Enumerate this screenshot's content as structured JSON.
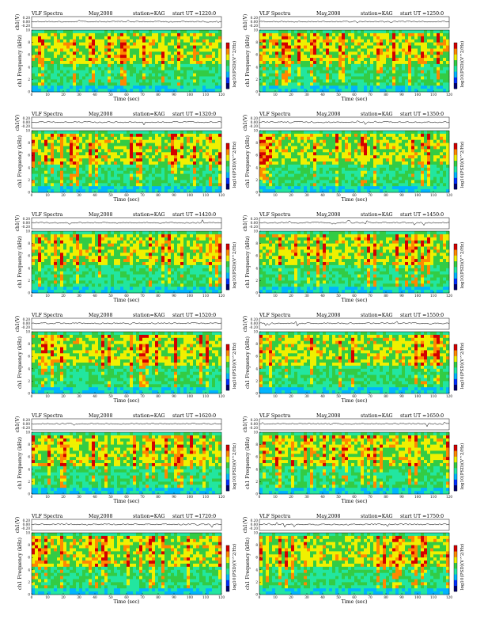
{
  "page": {
    "background": "#ffffff"
  },
  "chart_data": [
    {
      "type": "heatmap",
      "title": "VLF Spectra",
      "date": "May,2008",
      "station": "station=KAG",
      "start_ut": "start UT =1220:0",
      "top_panel": {
        "ylabel": "ch1(V)",
        "yticks": [
          "0.20",
          "0.00",
          "-0.20"
        ]
      },
      "ylabel": "ch1 Frequency (kHz)",
      "ylim": [
        0,
        10
      ],
      "yticks": [
        "0",
        "2",
        "4",
        "6",
        "8",
        "10"
      ],
      "xlabel": "Time (sec)",
      "xlim": [
        0,
        120
      ],
      "xticks": [
        "0",
        "10",
        "20",
        "30",
        "40",
        "50",
        "60",
        "70",
        "80",
        "90",
        "100",
        "110",
        "120"
      ],
      "colorbar_label": "log10(PSD)(V^2/Hz)",
      "colormap": [
        "#000070",
        "#0030ff",
        "#00b4ff",
        "#22e6a0",
        "#33cc44",
        "#f0f000",
        "#ff8800",
        "#d40000"
      ]
    },
    {
      "type": "heatmap",
      "title": "VLF Spectra",
      "date": "May,2008",
      "station": "station=KAG",
      "start_ut": "start UT =1250:0",
      "top_panel": {
        "ylabel": "ch1(V)",
        "yticks": [
          "0.20",
          "0.00",
          "-0.20"
        ]
      },
      "ylabel": "ch1 Frequency (kHz)",
      "ylim": [
        0,
        10
      ],
      "yticks": [
        "0",
        "2",
        "4",
        "6",
        "8",
        "10"
      ],
      "xlabel": "Time (sec)",
      "xlim": [
        0,
        120
      ],
      "xticks": [
        "0",
        "10",
        "20",
        "30",
        "40",
        "50",
        "60",
        "70",
        "80",
        "90",
        "100",
        "110",
        "120"
      ],
      "colorbar_label": "log10(PSD)(V^2/Hz)",
      "colormap": [
        "#000070",
        "#0030ff",
        "#00b4ff",
        "#22e6a0",
        "#33cc44",
        "#f0f000",
        "#ff8800",
        "#d40000"
      ]
    },
    {
      "type": "heatmap",
      "title": "VLF Spectra",
      "date": "May,2008",
      "station": "station=KAG",
      "start_ut": "start UT =1320:0",
      "top_panel": {
        "ylabel": "ch1(V)",
        "yticks": [
          "0.20",
          "0.00",
          "-0.20"
        ]
      },
      "ylabel": "ch1 Frequency (kHz)",
      "ylim": [
        0,
        10
      ],
      "yticks": [
        "0",
        "2",
        "4",
        "6",
        "8",
        "10"
      ],
      "xlabel": "Time (sec)",
      "xlim": [
        0,
        120
      ],
      "xticks": [
        "0",
        "10",
        "20",
        "30",
        "40",
        "50",
        "60",
        "70",
        "80",
        "90",
        "100",
        "110",
        "120"
      ],
      "colorbar_label": "log10(PSD)(V^2/Hz)",
      "colormap": [
        "#000070",
        "#0030ff",
        "#00b4ff",
        "#22e6a0",
        "#33cc44",
        "#f0f000",
        "#ff8800",
        "#d40000"
      ]
    },
    {
      "type": "heatmap",
      "title": "VLF Spectra",
      "date": "May,2008",
      "station": "station=KAG",
      "start_ut": "start UT =1350:0",
      "top_panel": {
        "ylabel": "ch1(V)",
        "yticks": [
          "0.20",
          "0.00",
          "-0.20"
        ]
      },
      "ylabel": "ch1 Frequency (kHz)",
      "ylim": [
        0,
        10
      ],
      "yticks": [
        "0",
        "2",
        "4",
        "6",
        "8",
        "10"
      ],
      "xlabel": "Time (sec)",
      "xlim": [
        0,
        120
      ],
      "xticks": [
        "0",
        "10",
        "20",
        "30",
        "40",
        "50",
        "60",
        "70",
        "80",
        "90",
        "100",
        "110",
        "120"
      ],
      "colorbar_label": "log10(PSD)(V^2/Hz)",
      "colormap": [
        "#000070",
        "#0030ff",
        "#00b4ff",
        "#22e6a0",
        "#33cc44",
        "#f0f000",
        "#ff8800",
        "#d40000"
      ]
    },
    {
      "type": "heatmap",
      "title": "VLF Spectra",
      "date": "May,2008",
      "station": "station=KAG",
      "start_ut": "start UT =1420:0",
      "top_panel": {
        "ylabel": "ch1(V)",
        "yticks": [
          "0.20",
          "0.00",
          "-0.20"
        ]
      },
      "ylabel": "ch1 Frequency (kHz)",
      "ylim": [
        0,
        10
      ],
      "yticks": [
        "0",
        "2",
        "4",
        "6",
        "8",
        "10"
      ],
      "xlabel": "Time (sec)",
      "xlim": [
        0,
        120
      ],
      "xticks": [
        "0",
        "10",
        "20",
        "30",
        "40",
        "50",
        "60",
        "70",
        "80",
        "90",
        "100",
        "110",
        "120"
      ],
      "colorbar_label": "log10(PSD)(V^2/Hz)",
      "colormap": [
        "#000070",
        "#0030ff",
        "#00b4ff",
        "#22e6a0",
        "#33cc44",
        "#f0f000",
        "#ff8800",
        "#d40000"
      ]
    },
    {
      "type": "heatmap",
      "title": "VLF Spectra",
      "date": "May,2008",
      "station": "station=KAG",
      "start_ut": "start UT =1450:0",
      "top_panel": {
        "ylabel": "ch1(V)",
        "yticks": [
          "0.20",
          "0.00",
          "-0.20"
        ]
      },
      "ylabel": "ch1 Frequency (kHz)",
      "ylim": [
        0,
        10
      ],
      "yticks": [
        "0",
        "2",
        "4",
        "6",
        "8",
        "10"
      ],
      "xlabel": "Time (sec)",
      "xlim": [
        0,
        120
      ],
      "xticks": [
        "0",
        "10",
        "20",
        "30",
        "40",
        "50",
        "60",
        "70",
        "80",
        "90",
        "100",
        "110",
        "120"
      ],
      "colorbar_label": "log10(PSD)(V^2/Hz)",
      "colormap": [
        "#000070",
        "#0030ff",
        "#00b4ff",
        "#22e6a0",
        "#33cc44",
        "#f0f000",
        "#ff8800",
        "#d40000"
      ]
    },
    {
      "type": "heatmap",
      "title": "VLF Spectra",
      "date": "May,2008",
      "station": "station=KAG",
      "start_ut": "start UT =1520:0",
      "top_panel": {
        "ylabel": "ch1(V)",
        "yticks": [
          "0.20",
          "0.00",
          "-0.20"
        ]
      },
      "ylabel": "ch1 Frequency (kHz)",
      "ylim": [
        0,
        10
      ],
      "yticks": [
        "0",
        "2",
        "4",
        "6",
        "8",
        "10"
      ],
      "xlabel": "Time (sec)",
      "xlim": [
        0,
        120
      ],
      "xticks": [
        "0",
        "10",
        "20",
        "30",
        "40",
        "50",
        "60",
        "70",
        "80",
        "90",
        "100",
        "110",
        "120"
      ],
      "colorbar_label": "log10(PSD)(V^2/Hz)",
      "colormap": [
        "#000070",
        "#0030ff",
        "#00b4ff",
        "#22e6a0",
        "#33cc44",
        "#f0f000",
        "#ff8800",
        "#d40000"
      ]
    },
    {
      "type": "heatmap",
      "title": "VLF Spectra",
      "date": "May,2008",
      "station": "station=KAG",
      "start_ut": "start UT =1550:0",
      "top_panel": {
        "ylabel": "ch1(V)",
        "yticks": [
          "0.20",
          "0.00",
          "-0.20"
        ]
      },
      "ylabel": "ch1 Frequency (kHz)",
      "ylim": [
        0,
        10
      ],
      "yticks": [
        "0",
        "2",
        "4",
        "6",
        "8",
        "10"
      ],
      "xlabel": "Time (sec)",
      "xlim": [
        0,
        120
      ],
      "xticks": [
        "0",
        "10",
        "20",
        "30",
        "40",
        "50",
        "60",
        "70",
        "80",
        "90",
        "100",
        "110",
        "120"
      ],
      "colorbar_label": "log10(PSD)(V^2/Hz)",
      "colormap": [
        "#000070",
        "#0030ff",
        "#00b4ff",
        "#22e6a0",
        "#33cc44",
        "#f0f000",
        "#ff8800",
        "#d40000"
      ]
    },
    {
      "type": "heatmap",
      "title": "VLF Spectra",
      "date": "May,2008",
      "station": "station=KAG",
      "start_ut": "start UT =1620:0",
      "top_panel": {
        "ylabel": "ch1(V)",
        "yticks": [
          "0.20",
          "0.00",
          "-0.20"
        ]
      },
      "ylabel": "ch1 Frequency (kHz)",
      "ylim": [
        0,
        10
      ],
      "yticks": [
        "0",
        "2",
        "4",
        "6",
        "8",
        "10"
      ],
      "xlabel": "Time (sec)",
      "xlim": [
        0,
        120
      ],
      "xticks": [
        "0",
        "10",
        "20",
        "30",
        "40",
        "50",
        "60",
        "70",
        "80",
        "90",
        "100",
        "110",
        "120"
      ],
      "colorbar_label": "log10(PSD)(V^2/Hz)",
      "colormap": [
        "#000070",
        "#0030ff",
        "#00b4ff",
        "#22e6a0",
        "#33cc44",
        "#f0f000",
        "#ff8800",
        "#d40000"
      ]
    },
    {
      "type": "heatmap",
      "title": "VLF Spectra",
      "date": "May,2008",
      "station": "station=KAG",
      "start_ut": "start UT =1650:0",
      "top_panel": {
        "ylabel": "ch1(V)",
        "yticks": [
          "0.20",
          "0.00",
          "-0.20"
        ]
      },
      "ylabel": "ch1 Frequency (kHz)",
      "ylim": [
        0,
        10
      ],
      "yticks": [
        "0",
        "2",
        "4",
        "6",
        "8",
        "10"
      ],
      "xlabel": "Time (sec)",
      "xlim": [
        0,
        120
      ],
      "xticks": [
        "0",
        "10",
        "20",
        "30",
        "40",
        "50",
        "60",
        "70",
        "80",
        "90",
        "100",
        "110",
        "120"
      ],
      "colorbar_label": "log10(PSD)(V^2/Hz)",
      "colormap": [
        "#000070",
        "#0030ff",
        "#00b4ff",
        "#22e6a0",
        "#33cc44",
        "#f0f000",
        "#ff8800",
        "#d40000"
      ]
    },
    {
      "type": "heatmap",
      "title": "VLF Spectra",
      "date": "May,2008",
      "station": "station=KAG",
      "start_ut": "start UT =1720:0",
      "top_panel": {
        "ylabel": "ch1(V)",
        "yticks": [
          "0.20",
          "0.00",
          "-0.20"
        ]
      },
      "ylabel": "ch1 Frequency (kHz)",
      "ylim": [
        0,
        10
      ],
      "yticks": [
        "0",
        "2",
        "4",
        "6",
        "8",
        "10"
      ],
      "xlabel": "Time (sec)",
      "xlim": [
        0,
        120
      ],
      "xticks": [
        "0",
        "10",
        "20",
        "30",
        "40",
        "50",
        "60",
        "70",
        "80",
        "90",
        "100",
        "110",
        "120"
      ],
      "colorbar_label": "log10(PSD)(V^2/Hz)",
      "colormap": [
        "#000070",
        "#0030ff",
        "#00b4ff",
        "#22e6a0",
        "#33cc44",
        "#f0f000",
        "#ff8800",
        "#d40000"
      ]
    },
    {
      "type": "heatmap",
      "title": "VLF Spectra",
      "date": "May,2008",
      "station": "station=KAG",
      "start_ut": "start UT =1750:0",
      "top_panel": {
        "ylabel": "ch1(V)",
        "yticks": [
          "0.20",
          "0.00",
          "-0.20"
        ]
      },
      "ylabel": "ch1 Frequency (kHz)",
      "ylim": [
        0,
        10
      ],
      "yticks": [
        "0",
        "2",
        "4",
        "6",
        "8",
        "10"
      ],
      "xlabel": "Time (sec)",
      "xlim": [
        0,
        120
      ],
      "xticks": [
        "0",
        "10",
        "20",
        "30",
        "40",
        "50",
        "60",
        "70",
        "80",
        "90",
        "100",
        "110",
        "120"
      ],
      "colorbar_label": "log10(PSD)(V^2/Hz)",
      "colormap": [
        "#000070",
        "#0030ff",
        "#00b4ff",
        "#22e6a0",
        "#33cc44",
        "#f0f000",
        "#ff8800",
        "#d40000"
      ]
    }
  ]
}
